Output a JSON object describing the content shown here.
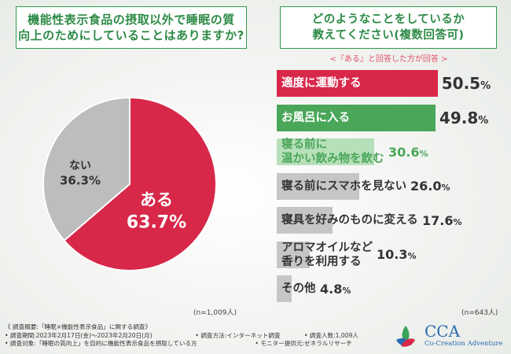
{
  "left_question": {
    "line1": "機能性表示食品の摂取以外で睡眠の質",
    "line2": "向上のためにしていることはありますか?"
  },
  "right_question": {
    "line1": "どのようなことをしているか",
    "line2": "教えてください(複数回答可)"
  },
  "right_note": "<『ある』と回答した方が回答 >",
  "left_n": "(n=1,009人)",
  "right_n": "(n=643人)",
  "chart_data": [
    {
      "type": "pie",
      "categories": [
        "ある",
        "ない"
      ],
      "values": [
        63.7,
        36.3
      ],
      "value_labels": [
        "63.7%",
        "36.3%"
      ],
      "colors": [
        "#d8284a",
        "#bdbdbd"
      ]
    },
    {
      "type": "bar",
      "orientation": "horizontal",
      "categories": [
        "適度に運動する",
        "お風呂に入る",
        "寝る前に温かい飲み物を飲む",
        "寝る前にスマホを見ない",
        "寝具を好みのものに変える",
        "アロマオイルなど香りを利用する",
        "その他"
      ],
      "label_lines": [
        [
          "適度に運動する"
        ],
        [
          "お風呂に入る"
        ],
        [
          "寝る前に",
          "温かい飲み物を飲む"
        ],
        [
          "寝る前にスマホを見ない"
        ],
        [
          "寝具を好みのものに変える"
        ],
        [
          "アロマオイルなど",
          "香りを利用する"
        ],
        [
          "その他"
        ]
      ],
      "values": [
        50.5,
        49.8,
        30.6,
        26.0,
        17.6,
        10.3,
        4.8
      ],
      "value_labels": [
        "50.5%",
        "49.8%",
        "30.6%",
        "26.0%",
        "17.6%",
        "10.3%",
        "4.8%"
      ],
      "colors": [
        "#d8284a",
        "#4aa659",
        "#b6e0ba",
        "#c6c6c6",
        "#c6c6c6",
        "#c6c6c6",
        "#c6c6c6"
      ],
      "xlim": [
        0,
        55
      ]
    }
  ],
  "footer": {
    "line1": "《 調査概要:「睡眠×機能性表示食品」に関する調査》",
    "line2a": "• 調査期間:2023年2月17日(金)〜2023年2月20日(月)",
    "line2b": "• 調査方法:インターネット調査",
    "line2c": "• 調査人数:1,009人",
    "line3a": "• 調査対象:「睡眠の質向上」を目的に機能性表示食品を摂取している方",
    "line3b": "• モニター提供元:ゼネラルリサーチ"
  },
  "logo": {
    "title": "CCA",
    "subtitle": "Co-Creation Adventure"
  }
}
